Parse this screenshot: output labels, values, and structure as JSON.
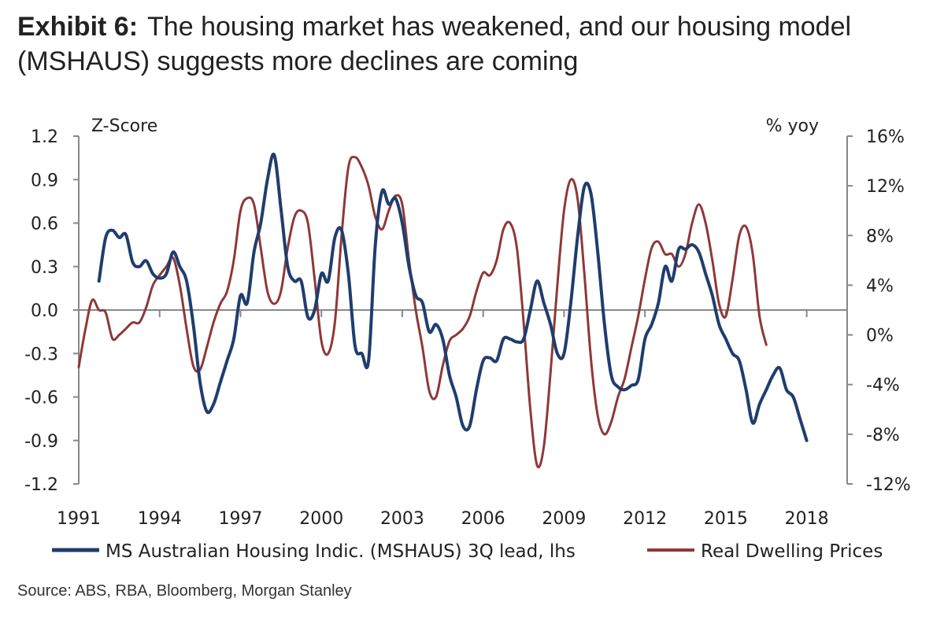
{
  "title": {
    "exhibit": "Exhibit 6:",
    "text": "The housing market has weakened, and our housing model (MSHAUS) suggests more declines are coming"
  },
  "source": "Source: ABS, RBA, Bloomberg, Morgan Stanley",
  "colors": {
    "mshaus": "#1f3d6e",
    "dwelling": "#8e3838",
    "axis": "#888888"
  },
  "chart_data": {
    "type": "line",
    "left_axis_label": "Z-Score",
    "right_axis_label": "% yoy",
    "left_ylim": [
      -1.2,
      1.2
    ],
    "right_ylim": [
      -12,
      16
    ],
    "xlim": [
      1991,
      2019.5
    ],
    "left_ticks": [
      "1.2",
      "0.9",
      "0.6",
      "0.3",
      "0.0",
      "-0.3",
      "-0.6",
      "-0.9",
      "-1.2"
    ],
    "right_ticks": [
      "16%",
      "12%",
      "8%",
      "4%",
      "0%",
      "-4%",
      "-8%",
      "-12%"
    ],
    "x_ticks": [
      "1991",
      "1994",
      "1997",
      "2000",
      "2003",
      "2006",
      "2009",
      "2012",
      "2015",
      "2018"
    ],
    "series": [
      {
        "name": "MS Australian Housing Indic. (MSHAUS) 3Q lead, lhs",
        "axis": "left",
        "points": [
          [
            1991.75,
            0.2
          ],
          [
            1992.0,
            0.5
          ],
          [
            1992.25,
            0.55
          ],
          [
            1992.5,
            0.5
          ],
          [
            1992.75,
            0.52
          ],
          [
            1993.0,
            0.33
          ],
          [
            1993.25,
            0.3
          ],
          [
            1993.5,
            0.34
          ],
          [
            1993.75,
            0.25
          ],
          [
            1994.0,
            0.22
          ],
          [
            1994.25,
            0.25
          ],
          [
            1994.5,
            0.4
          ],
          [
            1994.75,
            0.3
          ],
          [
            1995.0,
            0.2
          ],
          [
            1995.25,
            -0.1
          ],
          [
            1995.5,
            -0.5
          ],
          [
            1995.75,
            -0.7
          ],
          [
            1996.0,
            -0.65
          ],
          [
            1996.25,
            -0.5
          ],
          [
            1996.5,
            -0.35
          ],
          [
            1996.75,
            -0.2
          ],
          [
            1997.0,
            0.1
          ],
          [
            1997.25,
            0.05
          ],
          [
            1997.5,
            0.4
          ],
          [
            1997.75,
            0.6
          ],
          [
            1998.0,
            0.9
          ],
          [
            1998.25,
            1.07
          ],
          [
            1998.5,
            0.7
          ],
          [
            1998.75,
            0.3
          ],
          [
            1999.0,
            0.2
          ],
          [
            1999.25,
            0.2
          ],
          [
            1999.5,
            -0.05
          ],
          [
            1999.75,
            0.0
          ],
          [
            2000.0,
            0.25
          ],
          [
            2000.25,
            0.2
          ],
          [
            2000.5,
            0.5
          ],
          [
            2000.75,
            0.55
          ],
          [
            2001.0,
            0.25
          ],
          [
            2001.25,
            -0.25
          ],
          [
            2001.5,
            -0.3
          ],
          [
            2001.75,
            -0.35
          ],
          [
            2002.0,
            0.45
          ],
          [
            2002.25,
            0.82
          ],
          [
            2002.5,
            0.73
          ],
          [
            2002.75,
            0.77
          ],
          [
            2003.0,
            0.6
          ],
          [
            2003.25,
            0.3
          ],
          [
            2003.5,
            0.1
          ],
          [
            2003.75,
            0.05
          ],
          [
            2004.0,
            -0.15
          ],
          [
            2004.25,
            -0.1
          ],
          [
            2004.5,
            -0.2
          ],
          [
            2004.75,
            -0.45
          ],
          [
            2005.0,
            -0.6
          ],
          [
            2005.25,
            -0.8
          ],
          [
            2005.5,
            -0.8
          ],
          [
            2005.75,
            -0.55
          ],
          [
            2006.0,
            -0.35
          ],
          [
            2006.25,
            -0.33
          ],
          [
            2006.5,
            -0.35
          ],
          [
            2006.75,
            -0.2
          ],
          [
            2007.0,
            -0.2
          ],
          [
            2007.25,
            -0.22
          ],
          [
            2007.5,
            -0.2
          ],
          [
            2007.75,
            0.0
          ],
          [
            2008.0,
            0.2
          ],
          [
            2008.25,
            0.05
          ],
          [
            2008.5,
            -0.1
          ],
          [
            2008.75,
            -0.3
          ],
          [
            2009.0,
            -0.3
          ],
          [
            2009.25,
            0.05
          ],
          [
            2009.5,
            0.5
          ],
          [
            2009.75,
            0.85
          ],
          [
            2010.0,
            0.8
          ],
          [
            2010.25,
            0.4
          ],
          [
            2010.5,
            -0.1
          ],
          [
            2010.75,
            -0.45
          ],
          [
            2011.0,
            -0.53
          ],
          [
            2011.25,
            -0.55
          ],
          [
            2011.5,
            -0.52
          ],
          [
            2011.75,
            -0.48
          ],
          [
            2012.0,
            -0.2
          ],
          [
            2012.25,
            -0.1
          ],
          [
            2012.5,
            0.05
          ],
          [
            2012.75,
            0.3
          ],
          [
            2013.0,
            0.2
          ],
          [
            2013.25,
            0.42
          ],
          [
            2013.5,
            0.42
          ],
          [
            2013.75,
            0.45
          ],
          [
            2014.0,
            0.4
          ],
          [
            2014.25,
            0.25
          ],
          [
            2014.5,
            0.1
          ],
          [
            2014.75,
            -0.1
          ],
          [
            2015.0,
            -0.2
          ],
          [
            2015.25,
            -0.3
          ],
          [
            2015.5,
            -0.35
          ],
          [
            2015.75,
            -0.55
          ],
          [
            2016.0,
            -0.78
          ],
          [
            2016.25,
            -0.65
          ],
          [
            2016.5,
            -0.55
          ],
          [
            2016.75,
            -0.45
          ],
          [
            2017.0,
            -0.4
          ],
          [
            2017.25,
            -0.55
          ],
          [
            2017.5,
            -0.6
          ],
          [
            2017.75,
            -0.75
          ],
          [
            2018.0,
            -0.9
          ]
        ]
      },
      {
        "name": "Real Dwelling Prices",
        "axis": "right",
        "points": [
          [
            1991.0,
            -2.6
          ],
          [
            1991.25,
            0.5
          ],
          [
            1991.5,
            2.8
          ],
          [
            1991.75,
            2.0
          ],
          [
            1992.0,
            1.8
          ],
          [
            1992.25,
            -0.3
          ],
          [
            1992.5,
            0.0
          ],
          [
            1992.75,
            0.5
          ],
          [
            1993.0,
            1.0
          ],
          [
            1993.25,
            1.0
          ],
          [
            1993.5,
            2.2
          ],
          [
            1993.75,
            4.0
          ],
          [
            1994.0,
            4.8
          ],
          [
            1994.25,
            5.5
          ],
          [
            1994.5,
            6.2
          ],
          [
            1994.75,
            4.0
          ],
          [
            1995.0,
            0.5
          ],
          [
            1995.25,
            -2.5
          ],
          [
            1995.5,
            -2.8
          ],
          [
            1995.75,
            -1.0
          ],
          [
            1996.0,
            1.0
          ],
          [
            1996.25,
            2.5
          ],
          [
            1996.5,
            3.5
          ],
          [
            1996.75,
            6.0
          ],
          [
            1997.0,
            10.0
          ],
          [
            1997.25,
            11.0
          ],
          [
            1997.5,
            10.5
          ],
          [
            1997.75,
            7.0
          ],
          [
            1998.0,
            3.5
          ],
          [
            1998.25,
            2.5
          ],
          [
            1998.5,
            3.5
          ],
          [
            1998.75,
            7.0
          ],
          [
            1999.0,
            9.5
          ],
          [
            1999.25,
            10.0
          ],
          [
            1999.5,
            9.0
          ],
          [
            1999.75,
            4.5
          ],
          [
            2000.0,
            -0.5
          ],
          [
            2000.25,
            -1.5
          ],
          [
            2000.5,
            1.0
          ],
          [
            2000.75,
            8.0
          ],
          [
            2001.0,
            13.5
          ],
          [
            2001.25,
            14.3
          ],
          [
            2001.5,
            13.5
          ],
          [
            2001.75,
            12.0
          ],
          [
            2002.0,
            9.5
          ],
          [
            2002.25,
            8.5
          ],
          [
            2002.5,
            10.0
          ],
          [
            2002.75,
            11.2
          ],
          [
            2003.0,
            10.5
          ],
          [
            2003.25,
            6.0
          ],
          [
            2003.5,
            2.0
          ],
          [
            2003.75,
            -1.0
          ],
          [
            2004.0,
            -4.5
          ],
          [
            2004.25,
            -5.0
          ],
          [
            2004.5,
            -2.5
          ],
          [
            2004.75,
            -0.5
          ],
          [
            2005.0,
            0.0
          ],
          [
            2005.25,
            0.5
          ],
          [
            2005.5,
            1.5
          ],
          [
            2005.75,
            3.5
          ],
          [
            2006.0,
            5.0
          ],
          [
            2006.25,
            4.8
          ],
          [
            2006.5,
            6.0
          ],
          [
            2006.75,
            8.5
          ],
          [
            2007.0,
            9.0
          ],
          [
            2007.25,
            7.0
          ],
          [
            2007.5,
            1.0
          ],
          [
            2007.75,
            -6.0
          ],
          [
            2008.0,
            -10.5
          ],
          [
            2008.25,
            -9.0
          ],
          [
            2008.5,
            -3.0
          ],
          [
            2008.75,
            4.0
          ],
          [
            2009.0,
            10.0
          ],
          [
            2009.25,
            12.5
          ],
          [
            2009.5,
            11.0
          ],
          [
            2009.75,
            5.0
          ],
          [
            2010.0,
            -2.0
          ],
          [
            2010.25,
            -6.5
          ],
          [
            2010.5,
            -8.0
          ],
          [
            2010.75,
            -7.0
          ],
          [
            2011.0,
            -5.0
          ],
          [
            2011.25,
            -3.5
          ],
          [
            2011.5,
            -1.0
          ],
          [
            2011.75,
            1.5
          ],
          [
            2012.0,
            4.5
          ],
          [
            2012.25,
            7.0
          ],
          [
            2012.5,
            7.5
          ],
          [
            2012.75,
            6.5
          ],
          [
            2013.0,
            6.5
          ],
          [
            2013.25,
            5.5
          ],
          [
            2013.5,
            6.5
          ],
          [
            2013.75,
            9.0
          ],
          [
            2014.0,
            10.5
          ],
          [
            2014.25,
            9.0
          ],
          [
            2014.5,
            6.0
          ],
          [
            2014.75,
            2.5
          ],
          [
            2015.0,
            1.5
          ],
          [
            2015.25,
            4.5
          ],
          [
            2015.5,
            8.0
          ],
          [
            2015.75,
            8.7
          ],
          [
            2016.0,
            6.5
          ],
          [
            2016.25,
            1.5
          ],
          [
            2016.5,
            -0.8
          ]
        ]
      }
    ],
    "grid": false,
    "legend_position": "bottom"
  }
}
